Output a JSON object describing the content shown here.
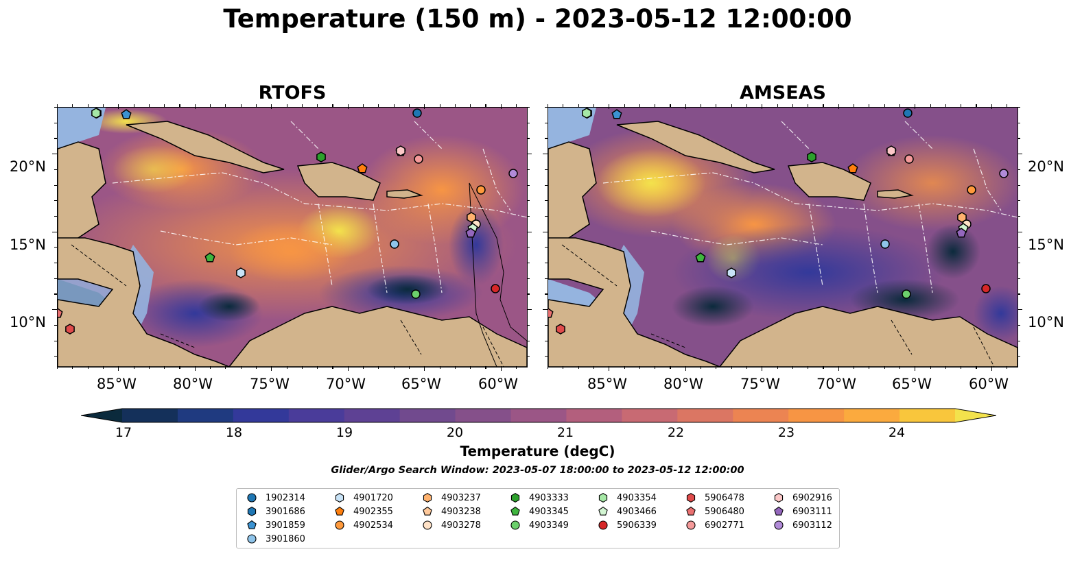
{
  "title": "Temperature (150 m) - 2023-05-12 12:00:00",
  "panels": [
    {
      "title": "RTOFS"
    },
    {
      "title": "AMSEAS"
    }
  ],
  "axes": {
    "x_ticks": [
      "85°W",
      "80°W",
      "75°W",
      "70°W",
      "65°W",
      "60°W"
    ],
    "y_ticks": [
      "20°N",
      "15°N",
      "10°N"
    ]
  },
  "colorbar": {
    "label": "Temperature (degC)",
    "ticks": [
      "17",
      "18",
      "19",
      "20",
      "21",
      "22",
      "23",
      "24"
    ],
    "colors": [
      "#0b2a3c",
      "#14305a",
      "#1f3a80",
      "#33399a",
      "#4a3c9a",
      "#5e4194",
      "#714a8e",
      "#85508a",
      "#9b5686",
      "#b35f7d",
      "#c86a73",
      "#db7663",
      "#ec8452",
      "#f79544",
      "#fbaa3e",
      "#f9c63c",
      "#f3e24c"
    ]
  },
  "search_window": "Glider/Argo Search Window: 2023-05-07 18:00:00 to 2023-05-12 12:00:00",
  "legend": [
    {
      "id": "1902314",
      "shape": "circle",
      "color": "#1f77b4"
    },
    {
      "id": "3901686",
      "shape": "hexagon",
      "color": "#1f77b4"
    },
    {
      "id": "3901859",
      "shape": "pentagon",
      "color": "#3b92d1"
    },
    {
      "id": "3901860",
      "shape": "circle",
      "color": "#8fc4ea"
    },
    {
      "id": "4901720",
      "shape": "hexagon",
      "color": "#c8e3f7"
    },
    {
      "id": "4902355",
      "shape": "pentagon",
      "color": "#ff7f0e"
    },
    {
      "id": "4902534",
      "shape": "circle",
      "color": "#ff9a3c"
    },
    {
      "id": "4903237",
      "shape": "hexagon",
      "color": "#ffb26e"
    },
    {
      "id": "4903238",
      "shape": "pentagon",
      "color": "#ffc99b"
    },
    {
      "id": "4903278",
      "shape": "circle",
      "color": "#ffe2c7"
    },
    {
      "id": "4903333",
      "shape": "hexagon",
      "color": "#2ca02c"
    },
    {
      "id": "4903345",
      "shape": "pentagon",
      "color": "#3fb53f"
    },
    {
      "id": "4903349",
      "shape": "circle",
      "color": "#6cd06c"
    },
    {
      "id": "4903354",
      "shape": "hexagon",
      "color": "#a6e8a6"
    },
    {
      "id": "4903466",
      "shape": "pentagon",
      "color": "#d2f5d2"
    },
    {
      "id": "5906339",
      "shape": "circle",
      "color": "#d62728"
    },
    {
      "id": "5906478",
      "shape": "hexagon",
      "color": "#e04b4b"
    },
    {
      "id": "5906480",
      "shape": "pentagon",
      "color": "#ea7070"
    },
    {
      "id": "6902771",
      "shape": "circle",
      "color": "#f59a9a"
    },
    {
      "id": "6902916",
      "shape": "hexagon",
      "color": "#fcc8c8"
    },
    {
      "id": "6903111",
      "shape": "pentagon",
      "color": "#9467bd"
    },
    {
      "id": "6903112",
      "shape": "circle",
      "color": "#b18bd8"
    }
  ],
  "colors": {
    "land": "#d2b48c",
    "shallow_water": "#95b4df"
  }
}
